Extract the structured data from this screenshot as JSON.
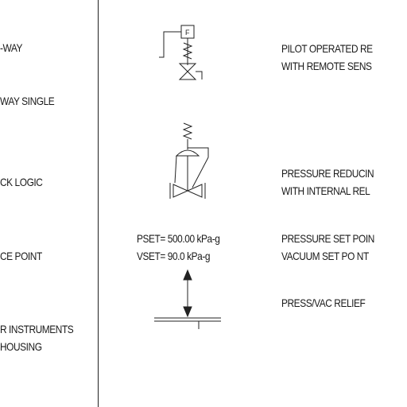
{
  "left_column": [
    "-WAY",
    "WAY SINGLE",
    "CK LOGIC",
    "CE POINT",
    "R INSTRUMENTS",
    "HOUSING"
  ],
  "symbols": {
    "pilot_box_letter": "F"
  },
  "annotations": {
    "pset": "PSET= 500.00 kPa-g",
    "vset": "VSET= 90.0 kPa-g"
  },
  "descriptions": {
    "pilot_line1": "PILOT OPERATED RE",
    "pilot_line2": "WITH REMOTE SENS",
    "reducing_line1": "PRESSURE REDUCIN",
    "reducing_line2": "WITH INTERNAL REL",
    "setpoint_line1": "PRESSURE SET POIN",
    "setpoint_line2": "VACUUM SET PO NT",
    "relief_line1": "PRESS/VAC RELIEF"
  }
}
